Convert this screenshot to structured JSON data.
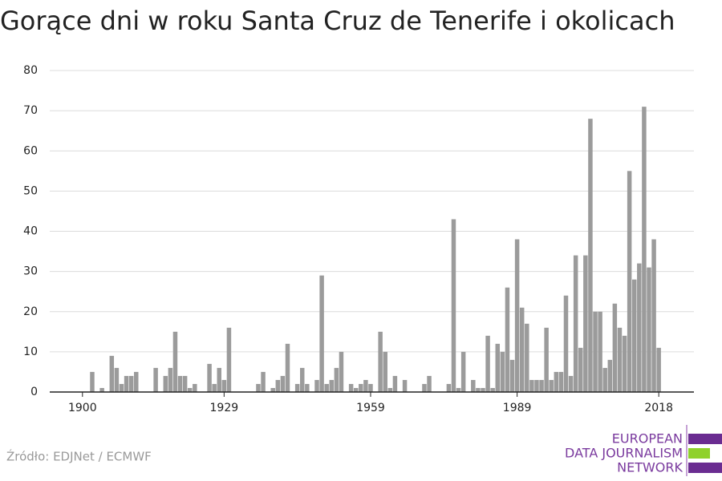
{
  "chart_data": {
    "type": "bar",
    "title": "Gorące dni w roku Santa Cruz de Tenerife i okolicach",
    "source": "Źródło: EDJNet / ECMWF",
    "logo": [
      "EUROPEAN",
      "DATA JOURNALISM",
      "NETWORK"
    ],
    "color": "#9b9b9b",
    "x": [
      1902,
      1904,
      1906,
      1907,
      1908,
      1909,
      1910,
      1911,
      1915,
      1917,
      1918,
      1919,
      1920,
      1921,
      1922,
      1923,
      1926,
      1927,
      1928,
      1929,
      1930,
      1936,
      1937,
      1939,
      1940,
      1941,
      1942,
      1944,
      1945,
      1946,
      1948,
      1949,
      1950,
      1951,
      1952,
      1953,
      1955,
      1956,
      1957,
      1958,
      1959,
      1961,
      1962,
      1963,
      1964,
      1966,
      1970,
      1971,
      1975,
      1976,
      1977,
      1978,
      1980,
      1981,
      1982,
      1983,
      1984,
      1985,
      1986,
      1987,
      1988,
      1989,
      1990,
      1991,
      1992,
      1993,
      1994,
      1995,
      1996,
      1997,
      1998,
      1999,
      2000,
      2001,
      2002,
      2003,
      2004,
      2005,
      2006,
      2007,
      2008,
      2009,
      2010,
      2011,
      2012,
      2013,
      2014,
      2015,
      2016,
      2017,
      2018
    ],
    "values": [
      5,
      1,
      9,
      6,
      2,
      4,
      4,
      5,
      6,
      4,
      6,
      15,
      4,
      4,
      1,
      2,
      7,
      2,
      6,
      3,
      16,
      2,
      5,
      1,
      3,
      4,
      12,
      2,
      6,
      2,
      3,
      29,
      2,
      3,
      6,
      10,
      2,
      1,
      2,
      3,
      2,
      15,
      10,
      1,
      4,
      3,
      2,
      4,
      2,
      43,
      1,
      10,
      3,
      1,
      1,
      14,
      1,
      12,
      10,
      26,
      8,
      38,
      21,
      17,
      3,
      3,
      3,
      16,
      3,
      5,
      5,
      24,
      4,
      34,
      11,
      34,
      68,
      20,
      20,
      6,
      8,
      22,
      16,
      14,
      55,
      28,
      32,
      71,
      31,
      38,
      11
    ],
    "xlim": [
      1893.3,
      2025.2
    ],
    "xticks": [
      1900,
      1929,
      1959,
      1989,
      2018
    ],
    "ylim": [
      0,
      80
    ],
    "yticks": [
      0,
      10,
      20,
      30,
      40,
      50,
      60,
      70,
      80
    ],
    "grid": true
  }
}
